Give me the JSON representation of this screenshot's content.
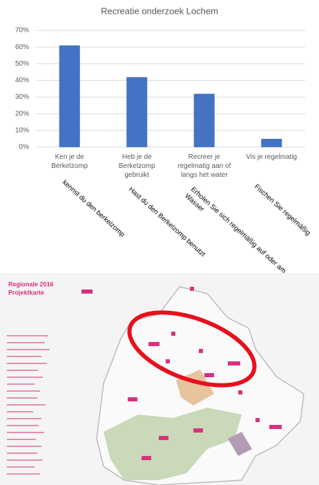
{
  "chart_data": {
    "type": "bar",
    "title": "Recreatie onderzoek Lochem",
    "categories": [
      "Ken je de Berkelzomp",
      "Heb je de Berkelzomp gebruikt",
      "Recreer je regelmatig aan of langs het water",
      "Vis je regelmatig"
    ],
    "values": [
      61,
      42,
      32,
      5
    ],
    "color": "#4472c4",
    "ylim": [
      0,
      70
    ],
    "yticks": [
      {
        "value": 0,
        "label": "0%"
      },
      {
        "value": 10,
        "label": "10%"
      },
      {
        "value": 20,
        "label": "20%"
      },
      {
        "value": 30,
        "label": "30%"
      },
      {
        "value": 40,
        "label": "40%"
      },
      {
        "value": 50,
        "label": "50%"
      },
      {
        "value": 60,
        "label": "60%"
      },
      {
        "value": 70,
        "label": "70%"
      }
    ],
    "grid": true,
    "annotations": [
      "kennst du den berkelzomp",
      "Hast du den Berkelzomp benutzt",
      "Erholen Sie sich regelmäßig auf oder am Wasser",
      "Fischen Sie regelmäßig"
    ]
  },
  "map": {
    "title": "Regionale 2016",
    "subtitle": "Projektkarte"
  }
}
